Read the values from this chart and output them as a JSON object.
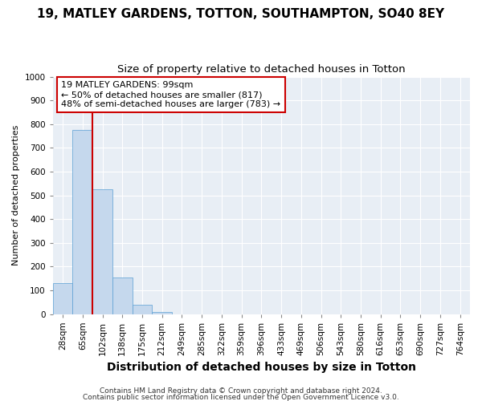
{
  "title1": "19, MATLEY GARDENS, TOTTON, SOUTHAMPTON, SO40 8EY",
  "title2": "Size of property relative to detached houses in Totton",
  "xlabel": "Distribution of detached houses by size in Totton",
  "ylabel": "Number of detached properties",
  "footer1": "Contains HM Land Registry data © Crown copyright and database right 2024.",
  "footer2": "Contains public sector information licensed under the Open Government Licence v3.0.",
  "bar_labels": [
    "28sqm",
    "65sqm",
    "102sqm",
    "138sqm",
    "175sqm",
    "212sqm",
    "249sqm",
    "285sqm",
    "322sqm",
    "359sqm",
    "396sqm",
    "433sqm",
    "469sqm",
    "506sqm",
    "543sqm",
    "580sqm",
    "616sqm",
    "653sqm",
    "690sqm",
    "727sqm",
    "764sqm"
  ],
  "bar_values": [
    130,
    775,
    525,
    155,
    40,
    10,
    0,
    0,
    0,
    0,
    0,
    0,
    0,
    0,
    0,
    0,
    0,
    0,
    0,
    0,
    0
  ],
  "bar_color": "#c5d8ed",
  "bar_edge_color": "#5a9fd4",
  "bar_edge_width": 0.5,
  "property_line_color": "#cc0000",
  "annotation_text": "19 MATLEY GARDENS: 99sqm\n← 50% of detached houses are smaller (817)\n48% of semi-detached houses are larger (783) →",
  "annotation_box_facecolor": "#ffffff",
  "annotation_box_edgecolor": "#cc0000",
  "ylim": [
    0,
    1000
  ],
  "yticks": [
    0,
    100,
    200,
    300,
    400,
    500,
    600,
    700,
    800,
    900,
    1000
  ],
  "plot_bg_color": "#e8eef5",
  "fig_bg_color": "#ffffff",
  "grid_color": "#ffffff",
  "title1_fontsize": 11,
  "title2_fontsize": 9.5,
  "xlabel_fontsize": 10,
  "ylabel_fontsize": 8,
  "tick_fontsize": 7.5,
  "annotation_fontsize": 8,
  "footer_fontsize": 6.5
}
